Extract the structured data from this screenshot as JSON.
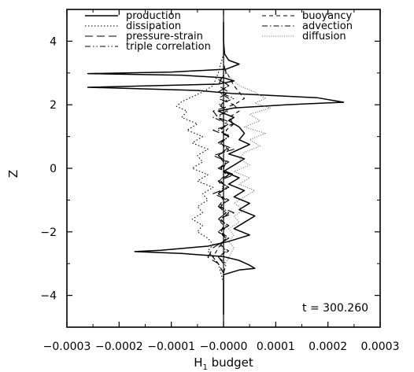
{
  "chart_data": {
    "type": "line",
    "xlabel": "H",
    "xlabel_subscript": "1",
    "xlabel_suffix": " budget",
    "ylabel": "Z",
    "xlim": [
      -0.0003,
      0.0003
    ],
    "ylim": [
      -5,
      5
    ],
    "x_ticks": [
      -0.0003,
      -0.0002,
      -0.0001,
      0.0,
      0.0001,
      0.0002,
      0.0003
    ],
    "x_tick_labels": [
      "−0.0003",
      "−0.0002",
      "−0.0001",
      "−0.0000",
      "0.0001",
      "0.0002",
      "0.0003"
    ],
    "y_ticks": [
      -4,
      -2,
      0,
      2,
      4
    ],
    "y_tick_labels": [
      "−4",
      "−2",
      "0",
      "2",
      "4"
    ],
    "annotation": "t = 300.260",
    "grid": false,
    "legend_position": "top",
    "series": [
      {
        "name": "production",
        "style": "solid",
        "color": "#000000",
        "points": [
          [
            0.0,
            4.6
          ],
          [
            0.0,
            4.0
          ],
          [
            2e-06,
            3.6
          ],
          [
            1e-05,
            3.4
          ],
          [
            3e-05,
            3.28
          ],
          [
            5e-06,
            3.12
          ],
          [
            -0.0001,
            3.03
          ],
          [
            -0.00026,
            2.98
          ],
          [
            -8e-05,
            2.93
          ],
          [
            0.0,
            2.85
          ],
          [
            2e-05,
            2.75
          ],
          [
            -1e-05,
            2.65
          ],
          [
            -0.00026,
            2.55
          ],
          [
            -5e-05,
            2.45
          ],
          [
            2e-05,
            2.35
          ],
          [
            0.00018,
            2.22
          ],
          [
            0.00023,
            2.08
          ],
          [
            0.00012,
            2.0
          ],
          [
            2e-05,
            1.9
          ],
          [
            -1e-05,
            1.8
          ],
          [
            2e-05,
            1.6
          ],
          [
            1e-05,
            1.5
          ],
          [
            3e-05,
            1.3
          ],
          [
            4e-05,
            1.1
          ],
          [
            3e-05,
            0.9
          ],
          [
            5e-05,
            0.75
          ],
          [
            3e-05,
            0.6
          ],
          [
            1e-05,
            0.45
          ],
          [
            4e-05,
            0.3
          ],
          [
            2e-05,
            0.1
          ],
          [
            0.0,
            -0.1
          ],
          [
            3e-05,
            -0.3
          ],
          [
            1e-05,
            -0.5
          ],
          [
            4e-05,
            -0.7
          ],
          [
            2e-05,
            -0.9
          ],
          [
            5e-05,
            -1.1
          ],
          [
            3e-05,
            -1.3
          ],
          [
            6e-05,
            -1.5
          ],
          [
            4e-05,
            -1.7
          ],
          [
            2e-05,
            -1.9
          ],
          [
            5e-05,
            -2.1
          ],
          [
            1e-05,
            -2.3
          ],
          [
            -3e-05,
            -2.45
          ],
          [
            -0.00012,
            -2.58
          ],
          [
            -0.00017,
            -2.62
          ],
          [
            -8e-05,
            -2.68
          ],
          [
            0.0,
            -2.78
          ],
          [
            3e-05,
            -2.9
          ],
          [
            5e-05,
            -3.05
          ],
          [
            6e-05,
            -3.15
          ],
          [
            3e-05,
            -3.2
          ],
          [
            0.0,
            -3.35
          ],
          [
            0.0,
            -3.6
          ],
          [
            0.0,
            -4.6
          ]
        ]
      },
      {
        "name": "dissipation",
        "style": "dotted",
        "color": "#000000",
        "points": [
          [
            0.0,
            4.6
          ],
          [
            0.0,
            3.6
          ],
          [
            -1e-05,
            3.0
          ],
          [
            -2e-05,
            2.6
          ],
          [
            -4e-05,
            2.4
          ],
          [
            -6e-05,
            2.25
          ],
          [
            -8e-05,
            2.1
          ],
          [
            -9e-05,
            1.95
          ],
          [
            -7e-05,
            1.8
          ],
          [
            -8e-05,
            1.6
          ],
          [
            -5e-05,
            1.4
          ],
          [
            -7e-05,
            1.2
          ],
          [
            -4e-05,
            1.0
          ],
          [
            -6e-05,
            0.8
          ],
          [
            -3e-05,
            0.6
          ],
          [
            -5e-05,
            0.4
          ],
          [
            -4e-05,
            0.2
          ],
          [
            -6e-05,
            0.0
          ],
          [
            -3e-05,
            -0.2
          ],
          [
            -5e-05,
            -0.4
          ],
          [
            -2e-05,
            -0.6
          ],
          [
            -4e-05,
            -0.8
          ],
          [
            -3e-05,
            -1.0
          ],
          [
            -5e-05,
            -1.2
          ],
          [
            -4e-05,
            -1.4
          ],
          [
            -6e-05,
            -1.6
          ],
          [
            -4e-05,
            -1.8
          ],
          [
            -5e-05,
            -2.0
          ],
          [
            -3e-05,
            -2.2
          ],
          [
            -2e-05,
            -2.4
          ],
          [
            -3e-05,
            -2.6
          ],
          [
            -2e-05,
            -2.8
          ],
          [
            -1e-05,
            -3.0
          ],
          [
            -5e-06,
            -3.3
          ],
          [
            0.0,
            -3.6
          ],
          [
            0.0,
            -4.6
          ]
        ]
      },
      {
        "name": "pressure-strain",
        "style": "long-dash",
        "color": "#000000",
        "points": [
          [
            0.0,
            3.6
          ],
          [
            0.0,
            3.0
          ],
          [
            -1e-05,
            2.6
          ],
          [
            1e-05,
            2.4
          ],
          [
            -1e-05,
            2.2
          ],
          [
            2e-05,
            2.0
          ],
          [
            -2e-05,
            1.8
          ],
          [
            -1e-05,
            1.6
          ],
          [
            2e-05,
            1.4
          ],
          [
            -2e-05,
            1.2
          ],
          [
            1e-05,
            1.0
          ],
          [
            -1e-05,
            0.8
          ],
          [
            2e-05,
            0.6
          ],
          [
            -2e-05,
            0.4
          ],
          [
            1e-05,
            0.2
          ],
          [
            -1e-05,
            0.0
          ],
          [
            2e-05,
            -0.2
          ],
          [
            -1e-05,
            -0.4
          ],
          [
            1e-05,
            -0.6
          ],
          [
            -2e-05,
            -0.8
          ],
          [
            1e-05,
            -1.0
          ],
          [
            -1e-05,
            -1.2
          ],
          [
            2e-05,
            -1.4
          ],
          [
            -1e-05,
            -1.6
          ],
          [
            1e-05,
            -1.8
          ],
          [
            -1e-05,
            -2.0
          ],
          [
            1e-05,
            -2.2
          ],
          [
            -2e-05,
            -2.5
          ],
          [
            -3e-05,
            -2.8
          ],
          [
            -1e-05,
            -3.0
          ],
          [
            0.0,
            -3.3
          ],
          [
            0.0,
            -3.6
          ]
        ]
      },
      {
        "name": "triple correlation",
        "style": "dash-dot-dot",
        "color": "#000000",
        "points": [
          [
            0.0,
            3.6
          ],
          [
            0.0,
            3.2
          ],
          [
            5e-06,
            3.0
          ],
          [
            -1e-05,
            2.8
          ],
          [
            1e-05,
            2.6
          ],
          [
            -1e-05,
            2.4
          ],
          [
            2e-05,
            2.2
          ],
          [
            -1e-05,
            2.0
          ],
          [
            1e-05,
            1.8
          ],
          [
            -2e-05,
            1.6
          ],
          [
            1e-05,
            1.4
          ],
          [
            -1e-05,
            1.2
          ],
          [
            1e-05,
            1.0
          ],
          [
            -1e-05,
            0.8
          ],
          [
            1e-05,
            0.6
          ],
          [
            -1e-05,
            0.4
          ],
          [
            5e-06,
            0.2
          ],
          [
            -5e-06,
            0.0
          ],
          [
            1e-05,
            -0.2
          ],
          [
            -1e-05,
            -0.4
          ],
          [
            1e-05,
            -0.6
          ],
          [
            -1e-05,
            -0.8
          ],
          [
            1e-05,
            -1.0
          ],
          [
            -1e-05,
            -1.2
          ],
          [
            5e-06,
            -1.4
          ],
          [
            -1e-05,
            -1.6
          ],
          [
            1e-05,
            -1.8
          ],
          [
            -5e-06,
            -2.0
          ],
          [
            1e-05,
            -2.2
          ],
          [
            -1e-05,
            -2.4
          ],
          [
            1e-05,
            -2.6
          ],
          [
            -1e-05,
            -2.8
          ],
          [
            5e-06,
            -3.0
          ],
          [
            0.0,
            -3.3
          ],
          [
            0.0,
            -3.6
          ]
        ]
      },
      {
        "name": "buoyancy",
        "style": "dashed",
        "color": "#000000",
        "points": [
          [
            0.0,
            3.6
          ],
          [
            0.0,
            3.2
          ],
          [
            1e-05,
            2.9
          ],
          [
            2e-05,
            2.6
          ],
          [
            3e-05,
            2.4
          ],
          [
            4e-05,
            2.2
          ],
          [
            2e-05,
            2.0
          ],
          [
            3e-05,
            1.8
          ],
          [
            1e-05,
            1.6
          ],
          [
            2e-05,
            1.4
          ],
          [
            5e-06,
            1.2
          ],
          [
            1e-05,
            1.0
          ],
          [
            -5e-06,
            0.8
          ],
          [
            5e-06,
            0.6
          ],
          [
            -1e-05,
            0.4
          ],
          [
            0.0,
            0.2
          ],
          [
            -5e-06,
            0.0
          ],
          [
            5e-06,
            -0.2
          ],
          [
            -1e-05,
            -0.4
          ],
          [
            0.0,
            -0.6
          ],
          [
            -1e-05,
            -0.8
          ],
          [
            0.0,
            -1.0
          ],
          [
            -1e-05,
            -1.2
          ],
          [
            5e-06,
            -1.4
          ],
          [
            -1e-05,
            -1.6
          ],
          [
            0.0,
            -1.8
          ],
          [
            -5e-06,
            -2.0
          ],
          [
            5e-06,
            -2.2
          ],
          [
            -1e-05,
            -2.5
          ],
          [
            -2e-05,
            -2.8
          ],
          [
            -1e-05,
            -3.0
          ],
          [
            0.0,
            -3.3
          ],
          [
            0.0,
            -3.6
          ]
        ]
      },
      {
        "name": "advection",
        "style": "dash-dot",
        "color": "#000000",
        "points": [
          [
            0.0,
            3.6
          ],
          [
            0.0,
            3.3
          ],
          [
            5e-06,
            3.0
          ],
          [
            -5e-06,
            2.8
          ],
          [
            1e-05,
            2.6
          ],
          [
            -1e-05,
            2.4
          ],
          [
            1e-05,
            2.2
          ],
          [
            -5e-06,
            2.0
          ],
          [
            5e-06,
            1.8
          ],
          [
            -1e-05,
            1.6
          ],
          [
            5e-06,
            1.4
          ],
          [
            -5e-06,
            1.2
          ],
          [
            1e-05,
            1.0
          ],
          [
            -5e-06,
            0.8
          ],
          [
            5e-06,
            0.6
          ],
          [
            -1e-05,
            0.4
          ],
          [
            5e-06,
            0.2
          ],
          [
            0.0,
            0.0
          ],
          [
            1e-05,
            -0.2
          ],
          [
            -5e-06,
            -0.4
          ],
          [
            5e-06,
            -0.6
          ],
          [
            -1e-05,
            -0.8
          ],
          [
            5e-06,
            -1.0
          ],
          [
            -5e-06,
            -1.2
          ],
          [
            1e-05,
            -1.4
          ],
          [
            -5e-06,
            -1.6
          ],
          [
            5e-06,
            -1.8
          ],
          [
            -1e-05,
            -2.0
          ],
          [
            5e-06,
            -2.2
          ],
          [
            -5e-06,
            -2.4
          ],
          [
            5e-06,
            -2.6
          ],
          [
            -1e-05,
            -2.8
          ],
          [
            0.0,
            -3.0
          ],
          [
            0.0,
            -3.3
          ],
          [
            0.0,
            -3.6
          ]
        ]
      },
      {
        "name": "diffusion",
        "style": "fine-dotted",
        "color": "#666666",
        "points": [
          [
            0.0,
            3.6
          ],
          [
            0.0,
            3.2
          ],
          [
            1e-05,
            2.9
          ],
          [
            3e-05,
            2.6
          ],
          [
            6e-05,
            2.4
          ],
          [
            8e-05,
            2.2
          ],
          [
            6e-05,
            2.05
          ],
          [
            9e-05,
            1.9
          ],
          [
            5e-05,
            1.7
          ],
          [
            7e-05,
            1.5
          ],
          [
            4e-05,
            1.3
          ],
          [
            8e-05,
            1.1
          ],
          [
            5e-05,
            0.9
          ],
          [
            7e-05,
            0.7
          ],
          [
            4e-05,
            0.5
          ],
          [
            3e-05,
            0.3
          ],
          [
            5e-05,
            0.1
          ],
          [
            2e-05,
            -0.1
          ],
          [
            5e-05,
            -0.3
          ],
          [
            3e-05,
            -0.5
          ],
          [
            6e-05,
            -0.7
          ],
          [
            4e-05,
            -0.9
          ],
          [
            2e-05,
            -1.1
          ],
          [
            4e-05,
            -1.3
          ],
          [
            2e-05,
            -1.5
          ],
          [
            3e-05,
            -1.7
          ],
          [
            1e-05,
            -1.9
          ],
          [
            2e-05,
            -2.1
          ],
          [
            1e-05,
            -2.3
          ],
          [
            2e-05,
            -2.5
          ],
          [
            1e-05,
            -2.8
          ],
          [
            0.0,
            -3.1
          ],
          [
            0.0,
            -3.6
          ]
        ]
      }
    ]
  }
}
